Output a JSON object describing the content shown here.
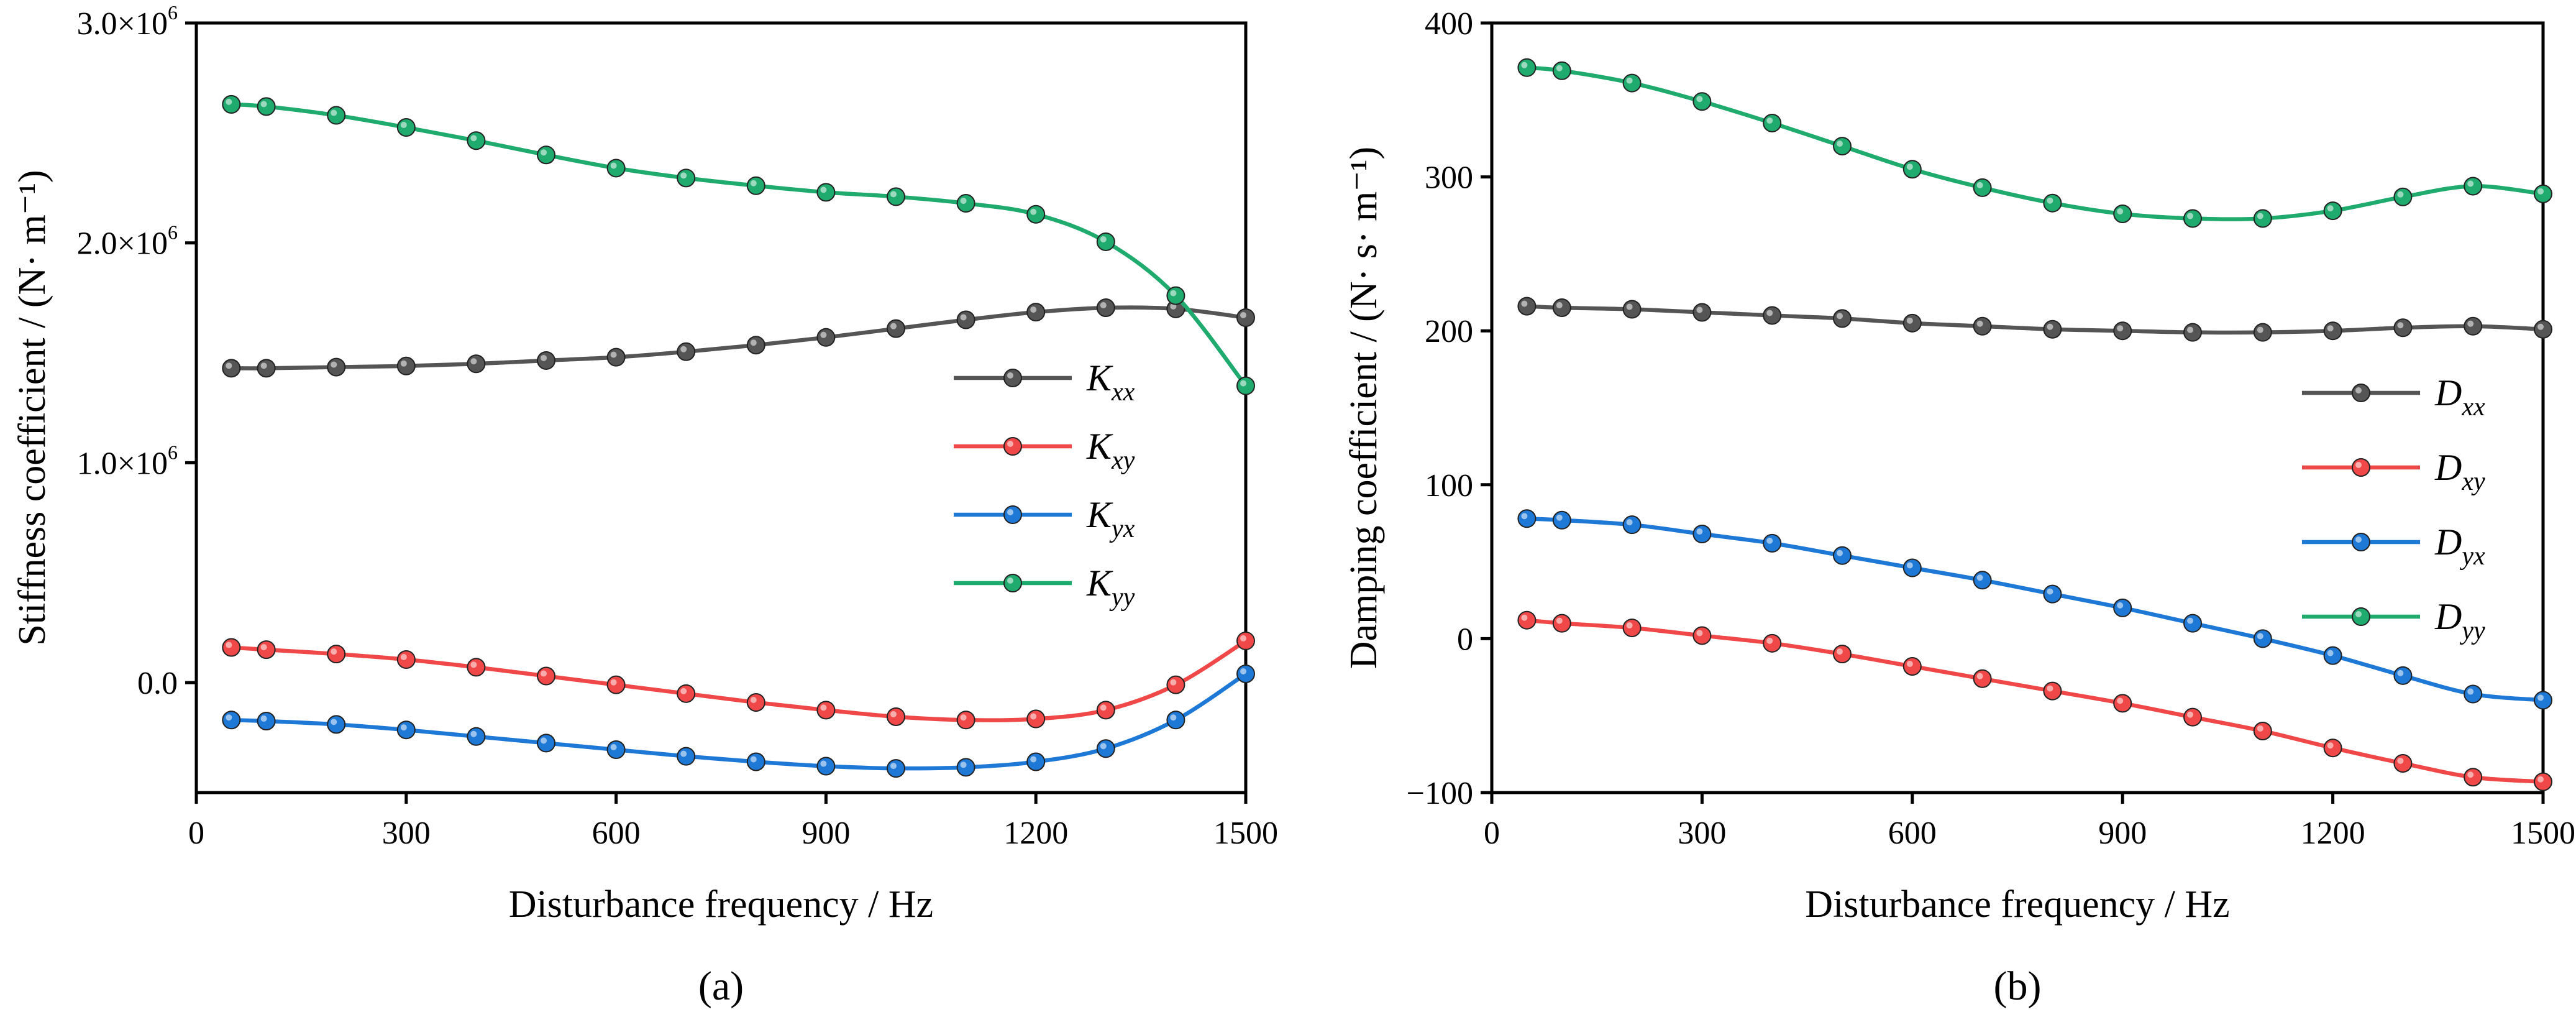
{
  "chart_data": [
    {
      "type": "line",
      "panel_label": "(a)",
      "xlabel": "Disturbance frequency / Hz",
      "ylabel": "Stiffness coefficient / (N· m⁻¹)",
      "xlim": [
        0,
        1500
      ],
      "ylim": [
        -500000,
        3000000
      ],
      "x_ticks": [
        0,
        300,
        600,
        900,
        1200,
        1500
      ],
      "x_tick_labels": [
        "0",
        "300",
        "600",
        "900",
        "1200",
        "1500"
      ],
      "y_ticks": [
        0,
        1000000,
        2000000,
        3000000
      ],
      "y_tick_labels": [
        {
          "text": "0.0",
          "exp": ""
        },
        {
          "text": "1.0×10",
          "exp": "6"
        },
        {
          "text": "2.0×10",
          "exp": "6"
        },
        {
          "text": "3.0×10",
          "exp": "6"
        }
      ],
      "legend_position": "center-right",
      "x": [
        50,
        100,
        200,
        300,
        400,
        500,
        600,
        700,
        800,
        900,
        1000,
        1100,
        1200,
        1300,
        1400,
        1500
      ],
      "series": [
        {
          "name": "Kxx",
          "symbol": "K",
          "sub": "xx",
          "color": "#555555",
          "values": [
            1430000,
            1430000,
            1435000,
            1440000,
            1450000,
            1465000,
            1480000,
            1505000,
            1535000,
            1570000,
            1610000,
            1650000,
            1685000,
            1705000,
            1700000,
            1660000
          ]
        },
        {
          "name": "Kxy",
          "symbol": "K",
          "sub": "xy",
          "color": "#f04848",
          "values": [
            160000,
            150000,
            130000,
            105000,
            70000,
            30000,
            -10000,
            -50000,
            -90000,
            -125000,
            -155000,
            -170000,
            -165000,
            -125000,
            -10000,
            190000
          ]
        },
        {
          "name": "Kyx",
          "symbol": "K",
          "sub": "yx",
          "color": "#1e78d6",
          "values": [
            -170000,
            -175000,
            -190000,
            -215000,
            -245000,
            -275000,
            -305000,
            -335000,
            -360000,
            -380000,
            -390000,
            -385000,
            -360000,
            -300000,
            -170000,
            40000
          ]
        },
        {
          "name": "Kyy",
          "symbol": "K",
          "sub": "yy",
          "color": "#1faa6e",
          "values": [
            2630000,
            2620000,
            2580000,
            2525000,
            2465000,
            2400000,
            2340000,
            2295000,
            2260000,
            2230000,
            2210000,
            2180000,
            2130000,
            2005000,
            1760000,
            1350000
          ]
        }
      ]
    },
    {
      "type": "line",
      "panel_label": "(b)",
      "xlabel": "Disturbance frequency / Hz",
      "ylabel": "Damping coefficient / (N· s· m⁻¹)",
      "xlim": [
        0,
        1500
      ],
      "ylim": [
        -100,
        400
      ],
      "x_ticks": [
        0,
        300,
        600,
        900,
        1200,
        1500
      ],
      "x_tick_labels": [
        "0",
        "300",
        "600",
        "900",
        "1200",
        "1500"
      ],
      "y_ticks": [
        -100,
        0,
        100,
        200,
        300,
        400
      ],
      "y_tick_labels": [
        {
          "text": "−100",
          "exp": ""
        },
        {
          "text": "0",
          "exp": ""
        },
        {
          "text": "100",
          "exp": ""
        },
        {
          "text": "200",
          "exp": ""
        },
        {
          "text": "300",
          "exp": ""
        },
        {
          "text": "400",
          "exp": ""
        }
      ],
      "legend_position": "center-right",
      "x": [
        50,
        100,
        200,
        300,
        400,
        500,
        600,
        700,
        800,
        900,
        1000,
        1100,
        1200,
        1300,
        1400,
        1500
      ],
      "series": [
        {
          "name": "Dxx",
          "symbol": "D",
          "sub": "xx",
          "color": "#555555",
          "values": [
            216,
            215,
            214,
            212,
            210,
            208,
            205,
            203,
            201,
            200,
            199,
            199,
            200,
            202,
            203,
            201
          ]
        },
        {
          "name": "Dxy",
          "symbol": "D",
          "sub": "xy",
          "color": "#f04848",
          "values": [
            12,
            10,
            7,
            2,
            -3,
            -10,
            -18,
            -26,
            -34,
            -42,
            -51,
            -60,
            -71,
            -81,
            -90,
            -93
          ]
        },
        {
          "name": "Dyx",
          "symbol": "D",
          "sub": "yx",
          "color": "#1e78d6",
          "values": [
            78,
            77,
            74,
            68,
            62,
            54,
            46,
            38,
            29,
            20,
            10,
            0,
            -11,
            -24,
            -36,
            -40
          ]
        },
        {
          "name": "Dyy",
          "symbol": "D",
          "sub": "yy",
          "color": "#1faa6e",
          "values": [
            371,
            369,
            361,
            349,
            335,
            320,
            305,
            293,
            283,
            276,
            273,
            273,
            278,
            287,
            294,
            289
          ]
        }
      ]
    }
  ]
}
